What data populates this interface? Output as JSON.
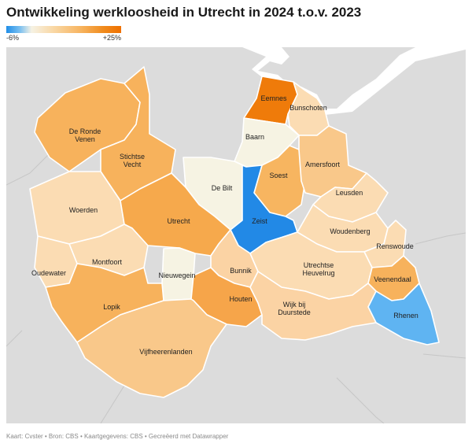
{
  "title": "Ontwikkeling werkloosheid in Utrecht in 2024 t.o.v. 2023",
  "legend": {
    "min_label": "-6%",
    "max_label": "+25%"
  },
  "footer": "Kaart: Cvster • Bron: CBS • Kaartgegevens: CBS • Gecreëerd met Datawrapper",
  "colors": {
    "background": "#dcdcdc",
    "water": "#ffffff",
    "strong_orange": "#ef7b0a",
    "mid_orange": "#f6b15a",
    "light_orange": "#f9c88a",
    "pale_orange": "#fbdcb3",
    "neutral": "#f6f3e3",
    "strong_blue": "#2289e6",
    "light_blue": "#5fb4f2"
  },
  "municipalities": [
    {
      "name": "Eemnes",
      "label": "Eemnes",
      "color": "#ef7b0a"
    },
    {
      "name": "Bunschoten",
      "label": "Bunschoten",
      "color": "#fbdcb3"
    },
    {
      "name": "Baarn",
      "label": "Baarn",
      "color": "#f6f3e3"
    },
    {
      "name": "De Ronde Venen",
      "label": "De Ronde\nVenen",
      "color": "#f7b25c"
    },
    {
      "name": "Stichtse Vecht",
      "label": "Stichtse\nVecht",
      "color": "#f7b25c"
    },
    {
      "name": "De Bilt",
      "label": "De Bilt",
      "color": "#f6f3e3"
    },
    {
      "name": "Soest",
      "label": "Soest",
      "color": "#f7b560"
    },
    {
      "name": "Amersfoort",
      "label": "Amersfoort",
      "color": "#f9c88a"
    },
    {
      "name": "Leusden",
      "label": "Leusden",
      "color": "#fbdcb3"
    },
    {
      "name": "Woerden",
      "label": "Woerden",
      "color": "#fbdcb3"
    },
    {
      "name": "Utrecht",
      "label": "Utrecht",
      "color": "#f6a94c"
    },
    {
      "name": "Zeist",
      "label": "Zeist",
      "color": "#2289e6"
    },
    {
      "name": "Woudenberg",
      "label": "Woudenberg",
      "color": "#fbdcb3"
    },
    {
      "name": "Renswoude",
      "label": "Renswoude",
      "color": "#fbdcb3"
    },
    {
      "name": "Montfoort",
      "label": "Montfoort",
      "color": "#fbdcb3"
    },
    {
      "name": "Oudewater",
      "label": "Oudewater",
      "color": "#fbdcb3"
    },
    {
      "name": "Nieuwegein",
      "label": "Nieuwegein",
      "color": "#f6f3e3"
    },
    {
      "name": "Bunnik",
      "label": "Bunnik",
      "color": "#fbd3a4"
    },
    {
      "name": "Utrechtse Heuvelrug",
      "label": "Utrechtse\nHeuvelrug",
      "color": "#fbdcb3"
    },
    {
      "name": "Veenendaal",
      "label": "Veenendaal",
      "color": "#f7b25c"
    },
    {
      "name": "Rhenen",
      "label": "Rhenen",
      "color": "#5fb4f2"
    },
    {
      "name": "Lopik",
      "label": "Lopik",
      "color": "#f7b25c"
    },
    {
      "name": "Houten",
      "label": "Houten",
      "color": "#f6a54a"
    },
    {
      "name": "Wijk bij Duurstede",
      "label": "Wijk bij\nDuurstede",
      "color": "#fbd3a4"
    },
    {
      "name": "Vijfheerenlanden",
      "label": "Vijfheerenlanden",
      "color": "#f9c88a"
    }
  ]
}
